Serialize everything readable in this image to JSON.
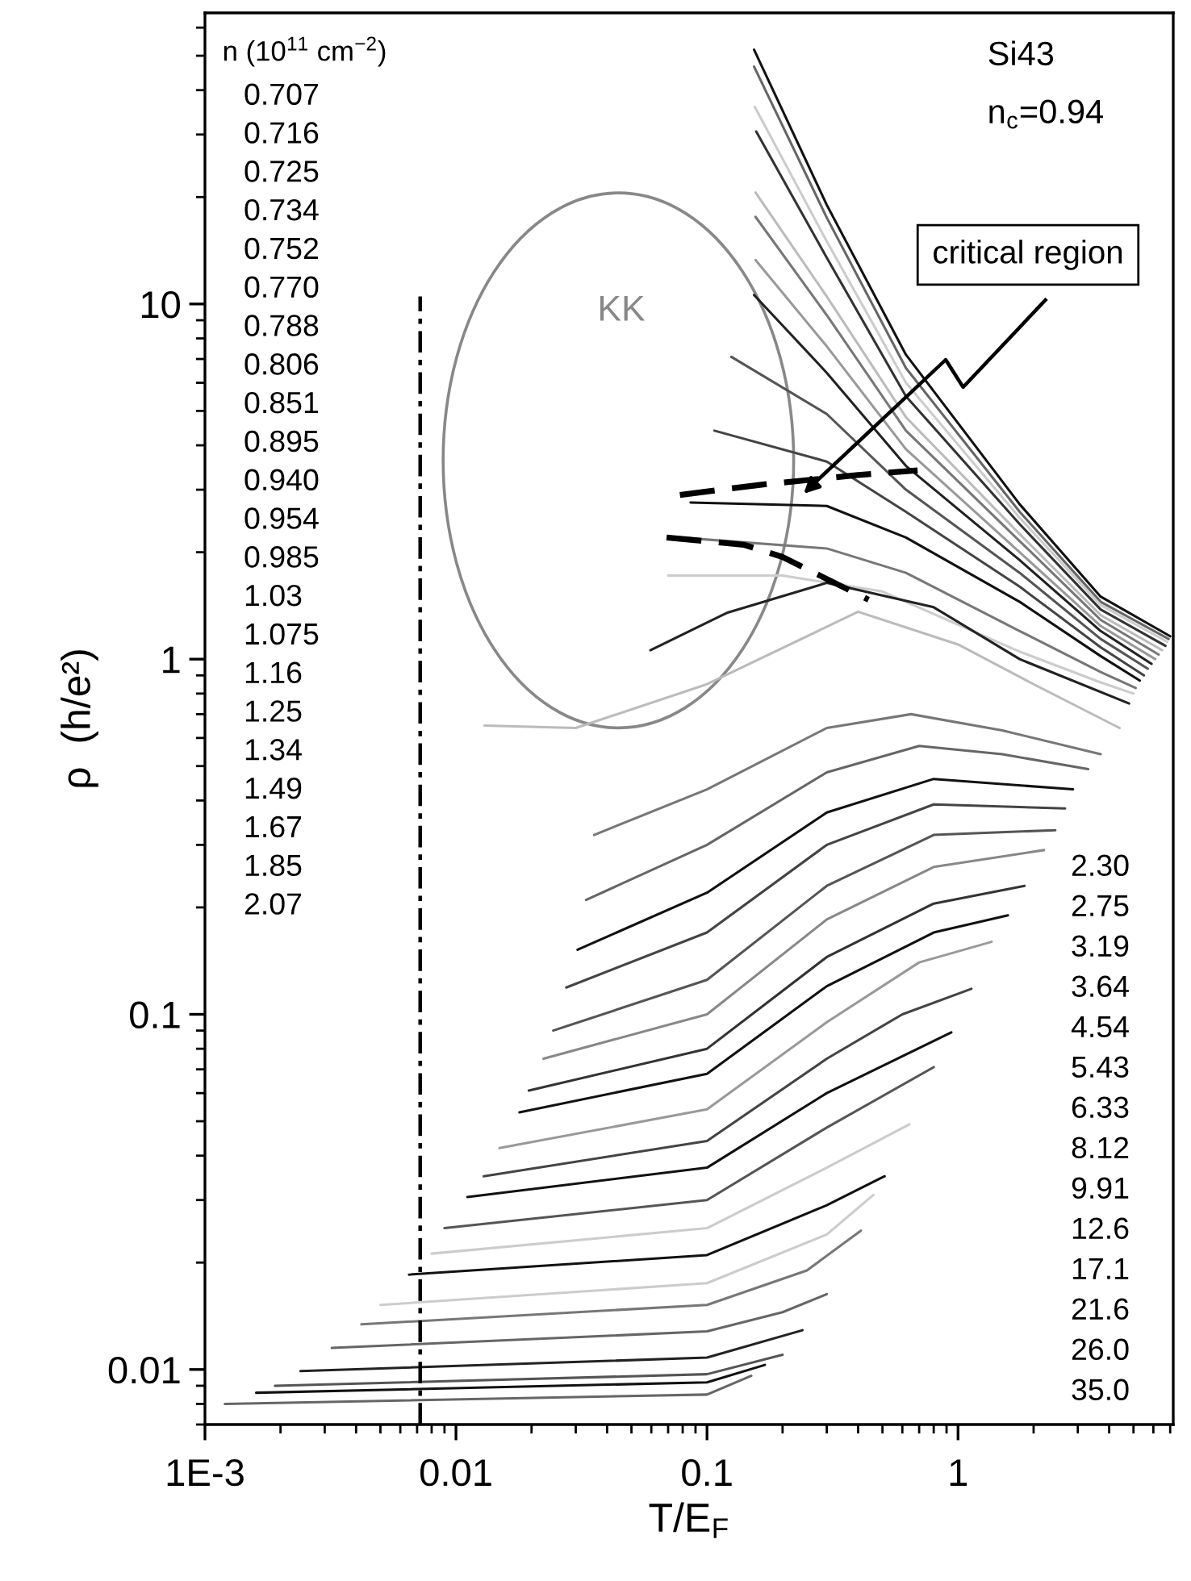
{
  "chart_data": {
    "type": "line",
    "xlabel": "T/E$_{F}$",
    "ylabel": "ρ  (h/e²)",
    "log": "xy",
    "grid": false,
    "xlim": [
      0.001,
      7.2
    ],
    "ylim": [
      0.007,
      66
    ],
    "xticks": [
      {
        "value": 0.001,
        "label": "1E-3"
      },
      0.01,
      0.1,
      1
    ],
    "yticks": [
      0.01,
      0.1,
      1,
      10
    ],
    "annotations": [
      "n (10$^{11}$ cm$^{−2}$)",
      "0.707",
      "0.716",
      "0.725",
      "0.734",
      "0.752",
      "0.770",
      "0.788",
      "0.806",
      "0.851",
      "0.895",
      "0.940",
      "0.954",
      "0.985",
      "1.03",
      "1.075",
      "1.16",
      "1.25",
      "1.34",
      "1.49",
      "1.67",
      "1.85",
      "2.07",
      "2.30",
      "2.75",
      "3.19",
      "3.64",
      "4.54",
      "5.43",
      "6.33",
      "8.12",
      "9.91",
      "12.6",
      "17.1",
      "21.6",
      "26.0",
      "35.0",
      "Si43",
      "n$_{c}$=0.94",
      "KK",
      "critical region"
    ],
    "series": [
      {
        "color": "#111111",
        "x": [
          0.154,
          0.3,
          0.62,
          1.76,
          3.7,
          7.0
        ],
        "values": [
          52,
          19,
          7.2,
          2.73,
          1.5,
          1.16
        ]
      },
      {
        "color": "#666666",
        "x": [
          0.154,
          0.3,
          0.62,
          1.76,
          3.7,
          6.9
        ],
        "values": [
          46.6,
          17.5,
          6.6,
          2.6,
          1.45,
          1.14
        ]
      },
      {
        "color": "#cccccc",
        "x": [
          0.155,
          0.3,
          0.62,
          1.76,
          3.7,
          6.8
        ],
        "values": [
          35.9,
          15,
          6.0,
          2.5,
          1.42,
          1.12
        ]
      },
      {
        "color": "#333333",
        "x": [
          0.157,
          0.3,
          0.62,
          1.76,
          3.7,
          6.7
        ],
        "values": [
          30.6,
          13.5,
          5.5,
          2.4,
          1.38,
          1.09
        ]
      },
      {
        "color": "#bbbbbb",
        "x": [
          0.156,
          0.3,
          0.62,
          1.76,
          3.7,
          6.5
        ],
        "values": [
          20.6,
          10.5,
          4.8,
          2.25,
          1.33,
          1.06
        ]
      },
      {
        "color": "#777777",
        "x": [
          0.156,
          0.3,
          0.62,
          1.76,
          3.7,
          6.3
        ],
        "values": [
          17.6,
          9.3,
          4.4,
          2.15,
          1.29,
          1.03
        ]
      },
      {
        "color": "#999999",
        "x": [
          0.156,
          0.3,
          0.62,
          1.76,
          3.7,
          6.1
        ],
        "values": [
          13.3,
          7.6,
          3.9,
          2.0,
          1.24,
          1.0
        ]
      },
      {
        "color": "#222222",
        "x": [
          0.154,
          0.3,
          0.62,
          1.76,
          3.7,
          5.9
        ],
        "values": [
          10.6,
          6.4,
          3.5,
          1.9,
          1.2,
          0.97
        ]
      },
      {
        "color": "#555555",
        "x": [
          0.125,
          0.3,
          0.62,
          1.76,
          3.7,
          5.7
        ],
        "values": [
          7.1,
          4.9,
          3.0,
          1.75,
          1.14,
          0.94
        ]
      },
      {
        "color": "#444444",
        "x": [
          0.107,
          0.3,
          0.62,
          1.76,
          3.7,
          5.5
        ],
        "values": [
          4.4,
          3.6,
          2.6,
          1.6,
          1.08,
          0.9
        ]
      },
      {
        "color": "#111111",
        "x": [
          0.086,
          0.3,
          0.62,
          1.76,
          3.7,
          5.3
        ],
        "values": [
          2.76,
          2.7,
          2.2,
          1.45,
          1.02,
          0.87
        ]
      },
      {
        "color": "#777777",
        "x": [
          0.078,
          0.3,
          0.62,
          1.76,
          3.7,
          5.1
        ],
        "values": [
          2.2,
          2.05,
          1.75,
          1.2,
          0.92,
          0.83
        ]
      },
      {
        "color": "#cccccc",
        "x": [
          0.07,
          0.2,
          0.5,
          1.76,
          3.7,
          5.0
        ],
        "values": [
          1.72,
          1.72,
          1.55,
          1.05,
          0.86,
          0.8
        ]
      },
      {
        "color": "#222222",
        "x": [
          0.0595,
          0.12,
          0.3,
          0.8,
          1.76,
          4.8
        ],
        "values": [
          1.06,
          1.35,
          1.64,
          1.4,
          1.0,
          0.75
        ]
      },
      {
        "color": "#bbbbbb",
        "x": [
          0.013,
          0.03,
          0.1,
          0.4,
          1.0,
          2.0,
          4.4
        ],
        "values": [
          0.65,
          0.64,
          0.85,
          1.36,
          1.1,
          0.85,
          0.64
        ]
      },
      {
        "color": "#777777",
        "x": [
          0.0355,
          0.1,
          0.3,
          0.65,
          1.5,
          3.7
        ],
        "values": [
          0.32,
          0.43,
          0.64,
          0.7,
          0.63,
          0.54
        ]
      },
      {
        "color": "#666666",
        "x": [
          0.033,
          0.1,
          0.3,
          0.7,
          1.5,
          3.3
        ],
        "values": [
          0.21,
          0.3,
          0.48,
          0.57,
          0.54,
          0.49
        ]
      },
      {
        "color": "#111111",
        "x": [
          0.0305,
          0.1,
          0.3,
          0.8,
          2.87
        ],
        "values": [
          0.152,
          0.22,
          0.37,
          0.46,
          0.43
        ]
      },
      {
        "color": "#444444",
        "x": [
          0.0275,
          0.1,
          0.3,
          0.8,
          2.67
        ],
        "values": [
          0.119,
          0.17,
          0.3,
          0.39,
          0.38
        ]
      },
      {
        "color": "#555555",
        "x": [
          0.0244,
          0.1,
          0.3,
          0.8,
          2.44
        ],
        "values": [
          0.09,
          0.125,
          0.23,
          0.32,
          0.33
        ]
      },
      {
        "color": "#888888",
        "x": [
          0.0223,
          0.1,
          0.3,
          0.8,
          2.2
        ],
        "values": [
          0.075,
          0.1,
          0.185,
          0.26,
          0.29
        ]
      },
      {
        "color": "#333333",
        "x": [
          0.0195,
          0.1,
          0.3,
          0.8,
          1.84
        ],
        "values": [
          0.061,
          0.08,
          0.145,
          0.205,
          0.23
        ]
      },
      {
        "color": "#111111",
        "x": [
          0.0179,
          0.1,
          0.3,
          0.8,
          1.58
        ],
        "values": [
          0.053,
          0.068,
          0.12,
          0.17,
          0.19
        ]
      },
      {
        "color": "#999999",
        "x": [
          0.0149,
          0.1,
          0.3,
          0.7,
          1.36
        ],
        "values": [
          0.042,
          0.054,
          0.095,
          0.14,
          0.16
        ]
      },
      {
        "color": "#444444",
        "x": [
          0.0129,
          0.1,
          0.3,
          0.6,
          1.13
        ],
        "values": [
          0.035,
          0.044,
          0.075,
          0.1,
          0.118
        ]
      },
      {
        "color": "#111111",
        "x": [
          0.0111,
          0.1,
          0.3,
          0.94
        ],
        "values": [
          0.0306,
          0.037,
          0.06,
          0.089
        ]
      },
      {
        "color": "#555555",
        "x": [
          0.009,
          0.1,
          0.3,
          0.8
        ],
        "values": [
          0.025,
          0.03,
          0.048,
          0.071
        ]
      },
      {
        "color": "#cccccc",
        "x": [
          0.008,
          0.1,
          0.3,
          0.64
        ],
        "values": [
          0.0212,
          0.025,
          0.037,
          0.049
        ]
      },
      {
        "color": "#111111",
        "x": [
          0.0065,
          0.1,
          0.3,
          0.51
        ],
        "values": [
          0.0185,
          0.021,
          0.029,
          0.035
        ]
      },
      {
        "color": "#cccccc",
        "x": [
          0.005,
          0.1,
          0.3,
          0.46
        ],
        "values": [
          0.0152,
          0.0175,
          0.024,
          0.031
        ]
      },
      {
        "color": "#777777",
        "x": [
          0.0042,
          0.1,
          0.25,
          0.41
        ],
        "values": [
          0.0134,
          0.0152,
          0.019,
          0.0246
        ]
      },
      {
        "color": "#666666",
        "x": [
          0.0032,
          0.1,
          0.2,
          0.3
        ],
        "values": [
          0.0115,
          0.0128,
          0.0145,
          0.0163
        ]
      },
      {
        "color": "#222222",
        "x": [
          0.0024,
          0.1,
          0.24
        ],
        "values": [
          0.0099,
          0.0108,
          0.0129
        ]
      },
      {
        "color": "#555555",
        "x": [
          0.0019,
          0.1,
          0.2
        ],
        "values": [
          0.009,
          0.0097,
          0.011
        ]
      },
      {
        "color": "#111111",
        "x": [
          0.0016,
          0.1,
          0.17
        ],
        "values": [
          0.0086,
          0.0092,
          0.0103
        ]
      },
      {
        "color": "#666666",
        "x": [
          0.0012,
          0.1,
          0.15
        ],
        "values": [
          0.008,
          0.0085,
          0.0096
        ]
      },
      {
        "color": "#000000",
        "line_style": "dashed",
        "x": [
          0.078,
          0.165,
          0.4,
          0.69
        ],
        "values": [
          2.9,
          3.1,
          3.3,
          3.4
        ]
      },
      {
        "color": "#000000",
        "line_style": "dashed",
        "x": [
          0.069,
          0.14,
          0.2,
          0.44
        ],
        "values": [
          2.2,
          2.1,
          1.94,
          1.47
        ]
      },
      {
        "color": "#000000",
        "line_style": "dashdot",
        "x": [
          0.0072,
          0.0072
        ],
        "values": [
          0.007,
          10.5
        ]
      }
    ]
  }
}
